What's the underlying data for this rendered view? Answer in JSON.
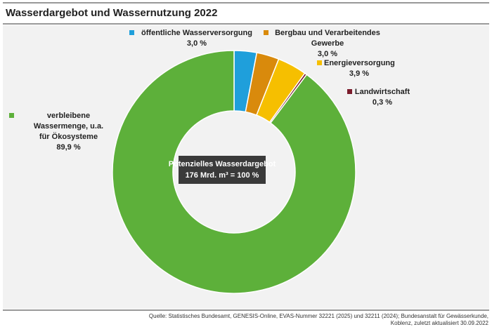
{
  "chart_data": {
    "type": "donut",
    "title": "Wasserdargebot und Wassernutzung 2022",
    "center_label": [
      "Potenzielles Wasserdargebot",
      "176 Mrd. m³ = 100 %"
    ],
    "categories": [
      "öffentliche Wasserversorgung",
      "Bergbau und Verarbeitendes Gewerbe",
      "Energieversorgung",
      "Landwirtschaft",
      "verbleibene Wassermenge, u.a. für Ökosysteme"
    ],
    "values": [
      3.0,
      3.0,
      3.9,
      0.3,
      89.9
    ],
    "value_labels": [
      "3,0 %",
      "3,0 %",
      "3,9 %",
      "0,3 %",
      "89,9 %"
    ],
    "colors": [
      "#1f9fdb",
      "#d98a0c",
      "#f6bf00",
      "#7b1c2c",
      "#5db03a"
    ],
    "source": [
      "Quelle: Statistisches Bundesamt, GENESIS-Online, EVAS-Nummer 32221 (2025) und 32211 (2024); Bundesanstalt für Gewässerkunde,",
      "Koblenz, zuletzt aktualisiert 30.09.2022"
    ]
  }
}
